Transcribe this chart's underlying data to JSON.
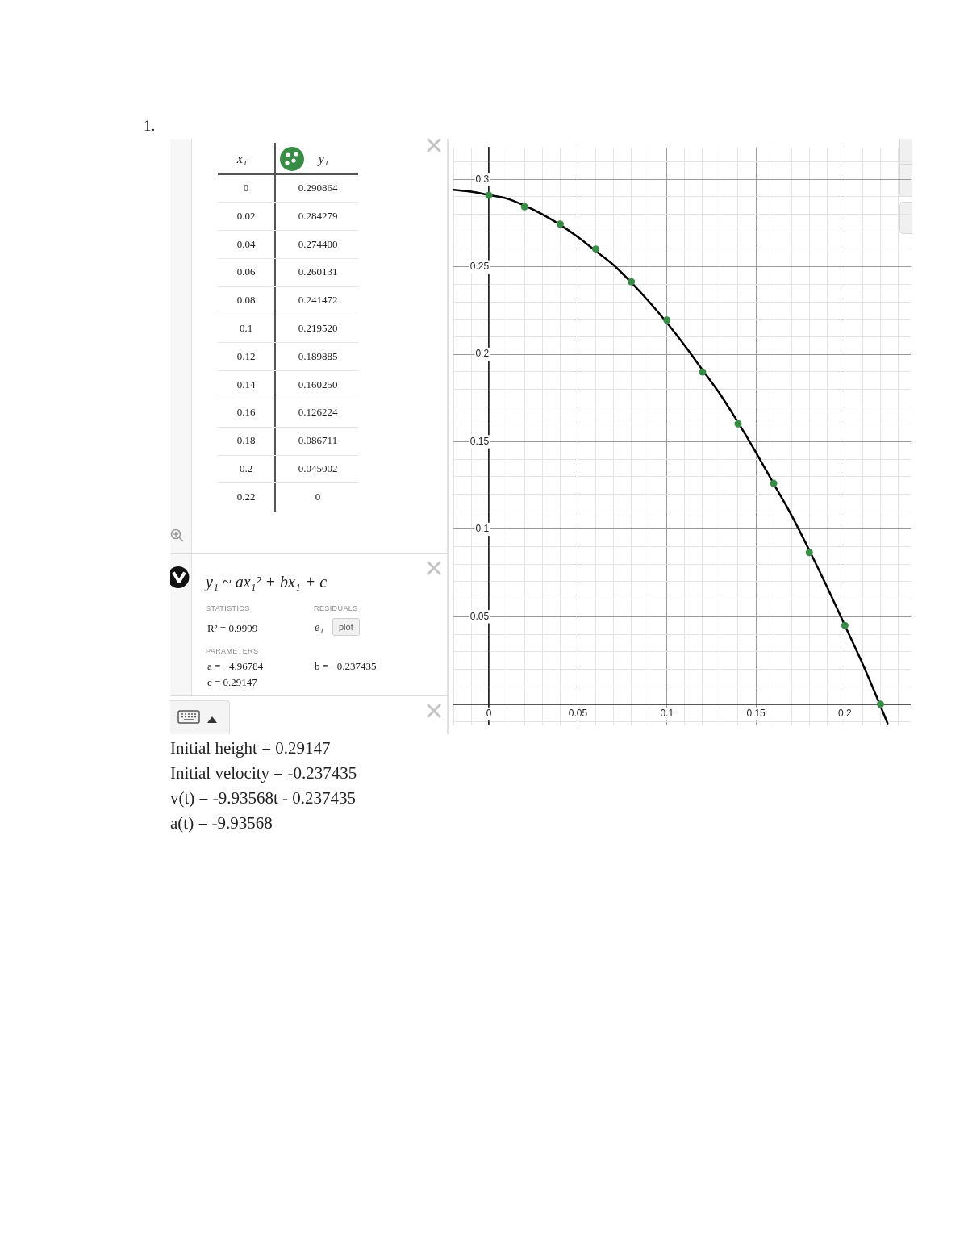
{
  "chart_data": {
    "type": "scatter",
    "xlim": [
      -0.02,
      0.237
    ],
    "ylim": [
      -0.012,
      0.318
    ],
    "xticks": [
      {
        "value": -0.02,
        "label": null
      },
      {
        "value": -0.01,
        "label": null
      },
      0,
      {
        "value": 0.01,
        "label": null
      },
      {
        "value": 0.02,
        "label": null
      },
      {
        "value": 0.03,
        "label": null
      },
      {
        "value": 0.04,
        "label": null
      },
      0.05,
      {
        "value": 0.06,
        "label": null
      },
      {
        "value": 0.07,
        "label": null
      },
      {
        "value": 0.08,
        "label": null
      },
      {
        "value": 0.09,
        "label": null
      },
      0.1,
      {
        "value": 0.11,
        "label": null
      },
      {
        "value": 0.12,
        "label": null
      },
      {
        "value": 0.13,
        "label": null
      },
      {
        "value": 0.14,
        "label": null
      },
      0.15,
      {
        "value": 0.16,
        "label": null
      },
      {
        "value": 0.17,
        "label": null
      },
      {
        "value": 0.18,
        "label": null
      },
      {
        "value": 0.19,
        "label": null
      },
      0.2,
      {
        "value": 0.21,
        "label": null
      },
      {
        "value": 0.22,
        "label": null
      },
      {
        "value": 0.23,
        "label": null
      }
    ],
    "yticks": [
      {
        "value": -0.01,
        "label": null
      },
      {
        "value": 0,
        "label": null
      },
      {
        "value": 0.01,
        "label": null
      },
      {
        "value": 0.02,
        "label": null
      },
      {
        "value": 0.03,
        "label": null
      },
      {
        "value": 0.04,
        "label": null
      },
      0.05,
      {
        "value": 0.06,
        "label": null
      },
      {
        "value": 0.07,
        "label": null
      },
      {
        "value": 0.08,
        "label": null
      },
      {
        "value": 0.09,
        "label": null
      },
      0.1,
      {
        "value": 0.11,
        "label": null
      },
      {
        "value": 0.12,
        "label": null
      },
      {
        "value": 0.13,
        "label": null
      },
      {
        "value": 0.14,
        "label": null
      },
      0.15,
      {
        "value": 0.16,
        "label": null
      },
      {
        "value": 0.17,
        "label": null
      },
      {
        "value": 0.18,
        "label": null
      },
      {
        "value": 0.19,
        "label": null
      },
      0.2,
      {
        "value": 0.21,
        "label": null
      },
      {
        "value": 0.22,
        "label": null
      },
      {
        "value": 0.23,
        "label": null
      },
      {
        "value": 0.24,
        "label": null
      },
      0.25,
      {
        "value": 0.26,
        "label": null
      },
      {
        "value": 0.27,
        "label": null
      },
      {
        "value": 0.28,
        "label": null
      },
      {
        "value": 0.29,
        "label": null
      },
      0.3,
      {
        "value": 0.31,
        "label": null
      }
    ],
    "grid": true,
    "series": [
      {
        "color": "#388c46",
        "marker": "circle",
        "x": [
          0,
          0.02,
          0.04,
          0.06,
          0.08,
          0.1,
          0.12,
          0.14,
          0.16,
          0.18,
          0.2,
          0.22
        ],
        "values": [
          0.290864,
          0.284279,
          0.2744,
          0.260131,
          0.241472,
          0.21952,
          0.189885,
          0.16025,
          0.126224,
          0.086711,
          0.045002,
          0
        ]
      },
      {
        "type": "line",
        "color": "#000000",
        "marker": "none",
        "x": [
          -0.02,
          -0.01,
          0,
          0.01,
          0.02,
          0.03,
          0.04,
          0.05,
          0.06,
          0.07,
          0.08,
          0.09,
          0.1,
          0.11,
          0.12,
          0.13,
          0.14,
          0.15,
          0.16,
          0.17,
          0.18,
          0.19,
          0.2,
          0.21,
          0.22,
          0.224
        ],
        "values": [
          0.294,
          0.293,
          0.291,
          0.289,
          0.285,
          0.28,
          0.274,
          0.267,
          0.259,
          0.251,
          0.241,
          0.23,
          0.218,
          0.205,
          0.191,
          0.177,
          0.161,
          0.144,
          0.126,
          0.108,
          0.088,
          0.067,
          0.045,
          0.023,
          -0.001,
          -0.011
        ]
      }
    ],
    "annotations": [
      "1.",
      "x₁",
      "y₁",
      "0",
      "0.290864",
      "0.02",
      "0.284279",
      "0.04",
      "0.274400",
      "0.06",
      "0.260131",
      "0.08",
      "0.241472",
      "0.1",
      "0.219520",
      "0.12",
      "0.189885",
      "0.14",
      "0.160250",
      "0.16",
      "0.126224",
      "0.18",
      "0.086711",
      "0.2",
      "0.045002",
      "0.22",
      "0",
      "y₁ ~ ax₁² + bx₁ + c",
      "STATISTICS",
      "RESIDUALS",
      "R² = 0.9999",
      "e₁",
      "plot",
      "PARAMETERS",
      "a = −4.96784",
      "b = −0.237435",
      "c = 0.29147",
      "Initial height = 0.29147",
      "Initial velocity = -0.237435",
      "v(t) = -9.93568t - 0.237435",
      "a(t) = -9.93568"
    ]
  }
}
